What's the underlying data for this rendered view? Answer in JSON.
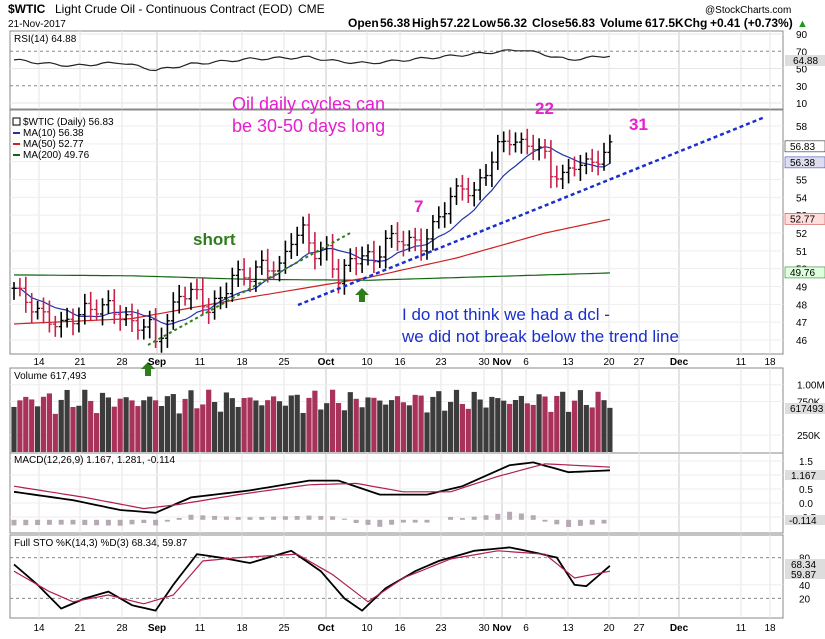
{
  "header": {
    "symbol": "$WTIC",
    "name": "Light Crude Oil - Continuous Contract (EOD)",
    "exchange": "CME",
    "date": "21-Nov-2017",
    "watermark": "@StockCharts.com",
    "open_label": "Open",
    "open": "56.38",
    "high_label": "High",
    "high": "57.22",
    "low_label": "Low",
    "low": "56.32",
    "close_label": "Close",
    "close": "56.83",
    "volume_label": "Volume",
    "volume": "617.5K",
    "chg_label": "Chg",
    "chg": "+0.41 (+0.73%)",
    "chg_arrow": "▲"
  },
  "rsi": {
    "label": "RSI(14) 64.88",
    "value_badge": "64.88",
    "ticks": [
      "90",
      "70",
      "50",
      "30",
      "10"
    ]
  },
  "price": {
    "legend": [
      "$WTIC (Daily) 56.83",
      "MA(10) 56.38",
      "MA(50) 52.77",
      "MA(200) 49.76"
    ],
    "legend_colors": [
      "#000000",
      "#2233aa",
      "#cc2222",
      "#116611"
    ],
    "ticks": [
      "58",
      "57",
      "56",
      "55",
      "54",
      "53",
      "52",
      "51",
      "50",
      "49",
      "48",
      "47",
      "46"
    ],
    "badges": [
      "56.83",
      "56.38",
      "52.77",
      "49.76"
    ]
  },
  "annotations": {
    "cycles_line1": "Oil daily cycles can",
    "cycles_line2": "be 30-50 days long",
    "short": "short",
    "num7": "7",
    "num22": "22",
    "num31": "31",
    "dcl_line1": "I do not think we had a dcl -",
    "dcl_line2": "we did not break below the trend line",
    "magenta": "#e61fd0",
    "blue": "#1a2fcc",
    "green": "#2e7d1b"
  },
  "volume": {
    "label": "Volume 617,493",
    "ticks": [
      "1.00M",
      "750K",
      "250K"
    ],
    "badge": "617493"
  },
  "macd": {
    "label": "MACD(12,26,9) 1.167, 1.281, -0.114",
    "ticks": [
      "1.5",
      "1.0",
      "0.5",
      "0.0",
      "-0.5"
    ],
    "badges": [
      "1.167",
      "-0.114"
    ]
  },
  "sto": {
    "label": "Full STO %K(14,3) %D(3) 68.34, 59.87",
    "ticks": [
      "80",
      "40",
      "20"
    ],
    "badges": [
      "68.34",
      "59.87"
    ]
  },
  "x_axis_labels": [
    "14",
    "21",
    "28",
    "Sep",
    "11",
    "18",
    "25",
    "Oct",
    "10",
    "16",
    "23",
    "30",
    "Nov",
    "6",
    "13",
    "20",
    "27",
    "Dec",
    "11",
    "18"
  ],
  "chart_data": {
    "type": "bar",
    "title": "$WTIC Light Crude Oil - Continuous Contract (EOD)",
    "x": [
      "Aug 14",
      "Aug 21",
      "Aug 28",
      "Sep 5",
      "Sep 11",
      "Sep 18",
      "Sep 25",
      "Oct 2",
      "Oct 9",
      "Oct 16",
      "Oct 23",
      "Oct 30",
      "Nov 6",
      "Nov 13",
      "Nov 20"
    ],
    "ohlc_close": [
      48.5,
      47.6,
      47.3,
      48.7,
      49.9,
      50.7,
      51.6,
      50.6,
      51.4,
      51.5,
      52.9,
      55.6,
      57.2,
      56.0,
      56.8
    ],
    "series": [
      {
        "name": "MA(10)",
        "last": 56.38
      },
      {
        "name": "MA(50)",
        "last": 52.77
      },
      {
        "name": "MA(200)",
        "last": 49.76
      }
    ],
    "ylim": [
      45.5,
      58.5
    ],
    "rsi_last": 64.88,
    "volume_last": 617493,
    "macd_last": [
      1.167,
      1.281,
      -0.114
    ],
    "sto_last": [
      68.34,
      59.87
    ]
  }
}
